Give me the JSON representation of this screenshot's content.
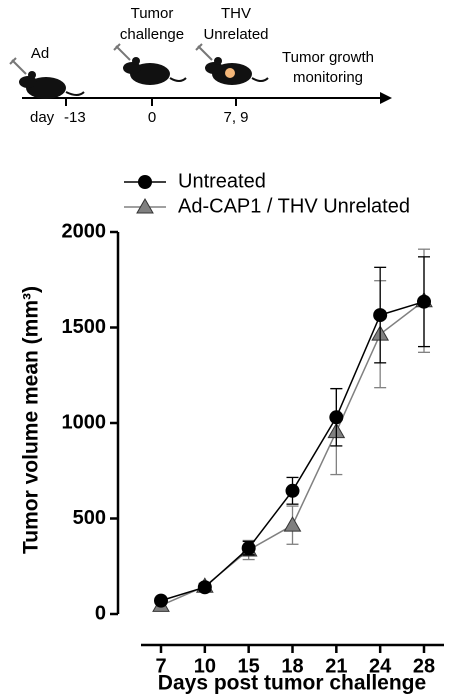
{
  "timeline": {
    "events": [
      {
        "lines": [
          "Ad"
        ],
        "day": "-13"
      },
      {
        "lines": [
          "Tumor",
          "challenge"
        ],
        "day": "0"
      },
      {
        "lines": [
          "THV",
          "Unrelated"
        ],
        "day": "7, 9"
      }
    ],
    "day_label": "day",
    "end_lines": [
      "Tumor growth",
      "monitoring"
    ]
  },
  "chart_data": {
    "type": "line",
    "xlabel": "Days post tumor challenge",
    "ylabel": "Tumor volume mean (mm³)",
    "categories": [
      "7",
      "10",
      "15",
      "18",
      "21",
      "24",
      "28"
    ],
    "ylim": [
      0,
      2000
    ],
    "yticks": [
      0,
      500,
      1000,
      1500,
      2000
    ],
    "series": [
      {
        "name": "Untreated",
        "color": "#000000",
        "marker": "circle",
        "values": [
          70,
          140,
          345,
          645,
          1030,
          1565,
          1635
        ],
        "errors": [
          10,
          20,
          35,
          70,
          150,
          250,
          235
        ]
      },
      {
        "name": "Ad-CAP1 / THV Unrelated",
        "color": "#808080",
        "marker": "triangle",
        "values": [
          45,
          145,
          335,
          465,
          955,
          1465,
          1640
        ],
        "errors": [
          10,
          15,
          50,
          100,
          225,
          280,
          270
        ]
      }
    ]
  }
}
